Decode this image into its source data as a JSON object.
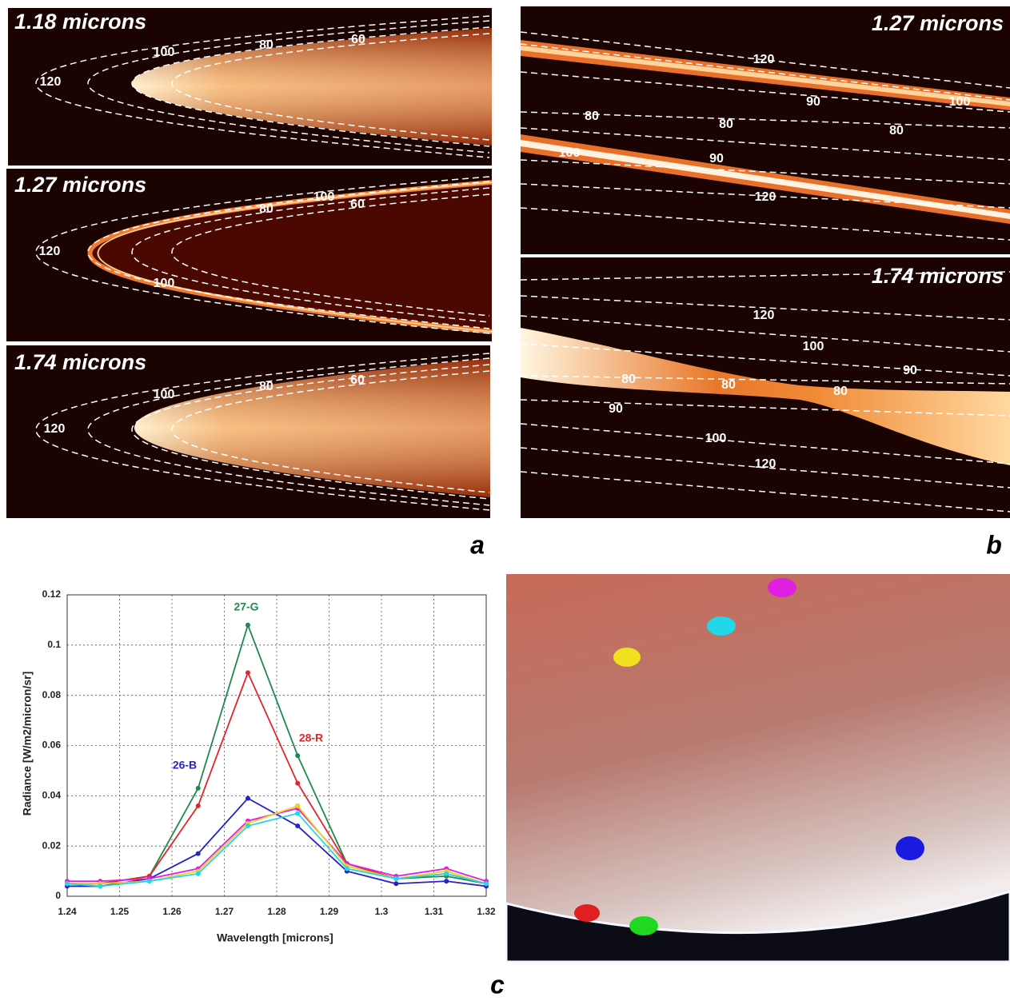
{
  "chart_data": {
    "type": "line",
    "x": [
      1.24,
      1.2463,
      1.2557,
      1.265,
      1.2745,
      1.284,
      1.2934,
      1.3028,
      1.3124,
      1.32
    ],
    "series": [
      {
        "name": "27-G",
        "color": "#1e8a4e",
        "values": [
          0.005,
          0.005,
          0.008,
          0.043,
          0.108,
          0.056,
          0.013,
          0.007,
          0.008,
          0.005
        ]
      },
      {
        "name": "28-R",
        "color": "#e0262b",
        "values": [
          0.005,
          0.005,
          0.008,
          0.036,
          0.089,
          0.045,
          0.013,
          0.007,
          0.009,
          0.005
        ]
      },
      {
        "name": "26-B",
        "color": "#2424c8",
        "values": [
          0.004,
          0.004,
          0.007,
          0.017,
          0.039,
          0.028,
          0.01,
          0.005,
          0.006,
          0.004
        ]
      },
      {
        "color": "#e020e0",
        "values": [
          0.006,
          0.006,
          0.007,
          0.011,
          0.03,
          0.035,
          0.013,
          0.008,
          0.011,
          0.006
        ]
      },
      {
        "color": "#f0d020",
        "values": [
          0.005,
          0.005,
          0.006,
          0.01,
          0.029,
          0.036,
          0.012,
          0.007,
          0.01,
          0.005
        ]
      },
      {
        "color": "#20d8e8",
        "values": [
          0.005,
          0.004,
          0.006,
          0.009,
          0.028,
          0.033,
          0.011,
          0.007,
          0.009,
          0.005
        ]
      }
    ],
    "x_label": "Wavelength [microns]",
    "y_label": "Radiance [W/m2/micron/sr]",
    "xlim": [
      1.24,
      1.32
    ],
    "xticks": [
      1.24,
      1.25,
      1.26,
      1.27,
      1.28,
      1.29,
      1.3,
      1.31,
      1.32
    ],
    "ylim": [
      0,
      0.12
    ],
    "yticks": [
      0,
      0.02,
      0.04,
      0.06,
      0.08,
      0.1,
      0.12
    ],
    "grid": true
  },
  "panels": {
    "a": {
      "letter": "a",
      "images": [
        {
          "title": "1.18 microns",
          "contour_labels": [
            "120",
            "100",
            "80",
            "60"
          ]
        },
        {
          "title": "1.27 microns",
          "contour_labels": [
            "120",
            "80",
            "100",
            "60",
            "100"
          ]
        },
        {
          "title": "1.74 microns",
          "contour_labels": [
            "120",
            "100",
            "80",
            "60"
          ]
        }
      ]
    },
    "b": {
      "letter": "b",
      "images": [
        {
          "title": "1.27 microns",
          "contour_labels": [
            "120",
            "90",
            "100",
            "80",
            "80",
            "80",
            "100",
            "90",
            "120"
          ]
        },
        {
          "title": "1.74 microns",
          "contour_labels": [
            "120",
            "100",
            "90",
            "80",
            "80",
            "80",
            "90",
            "100",
            "120"
          ]
        }
      ]
    },
    "c": {
      "letter": "c"
    }
  }
}
